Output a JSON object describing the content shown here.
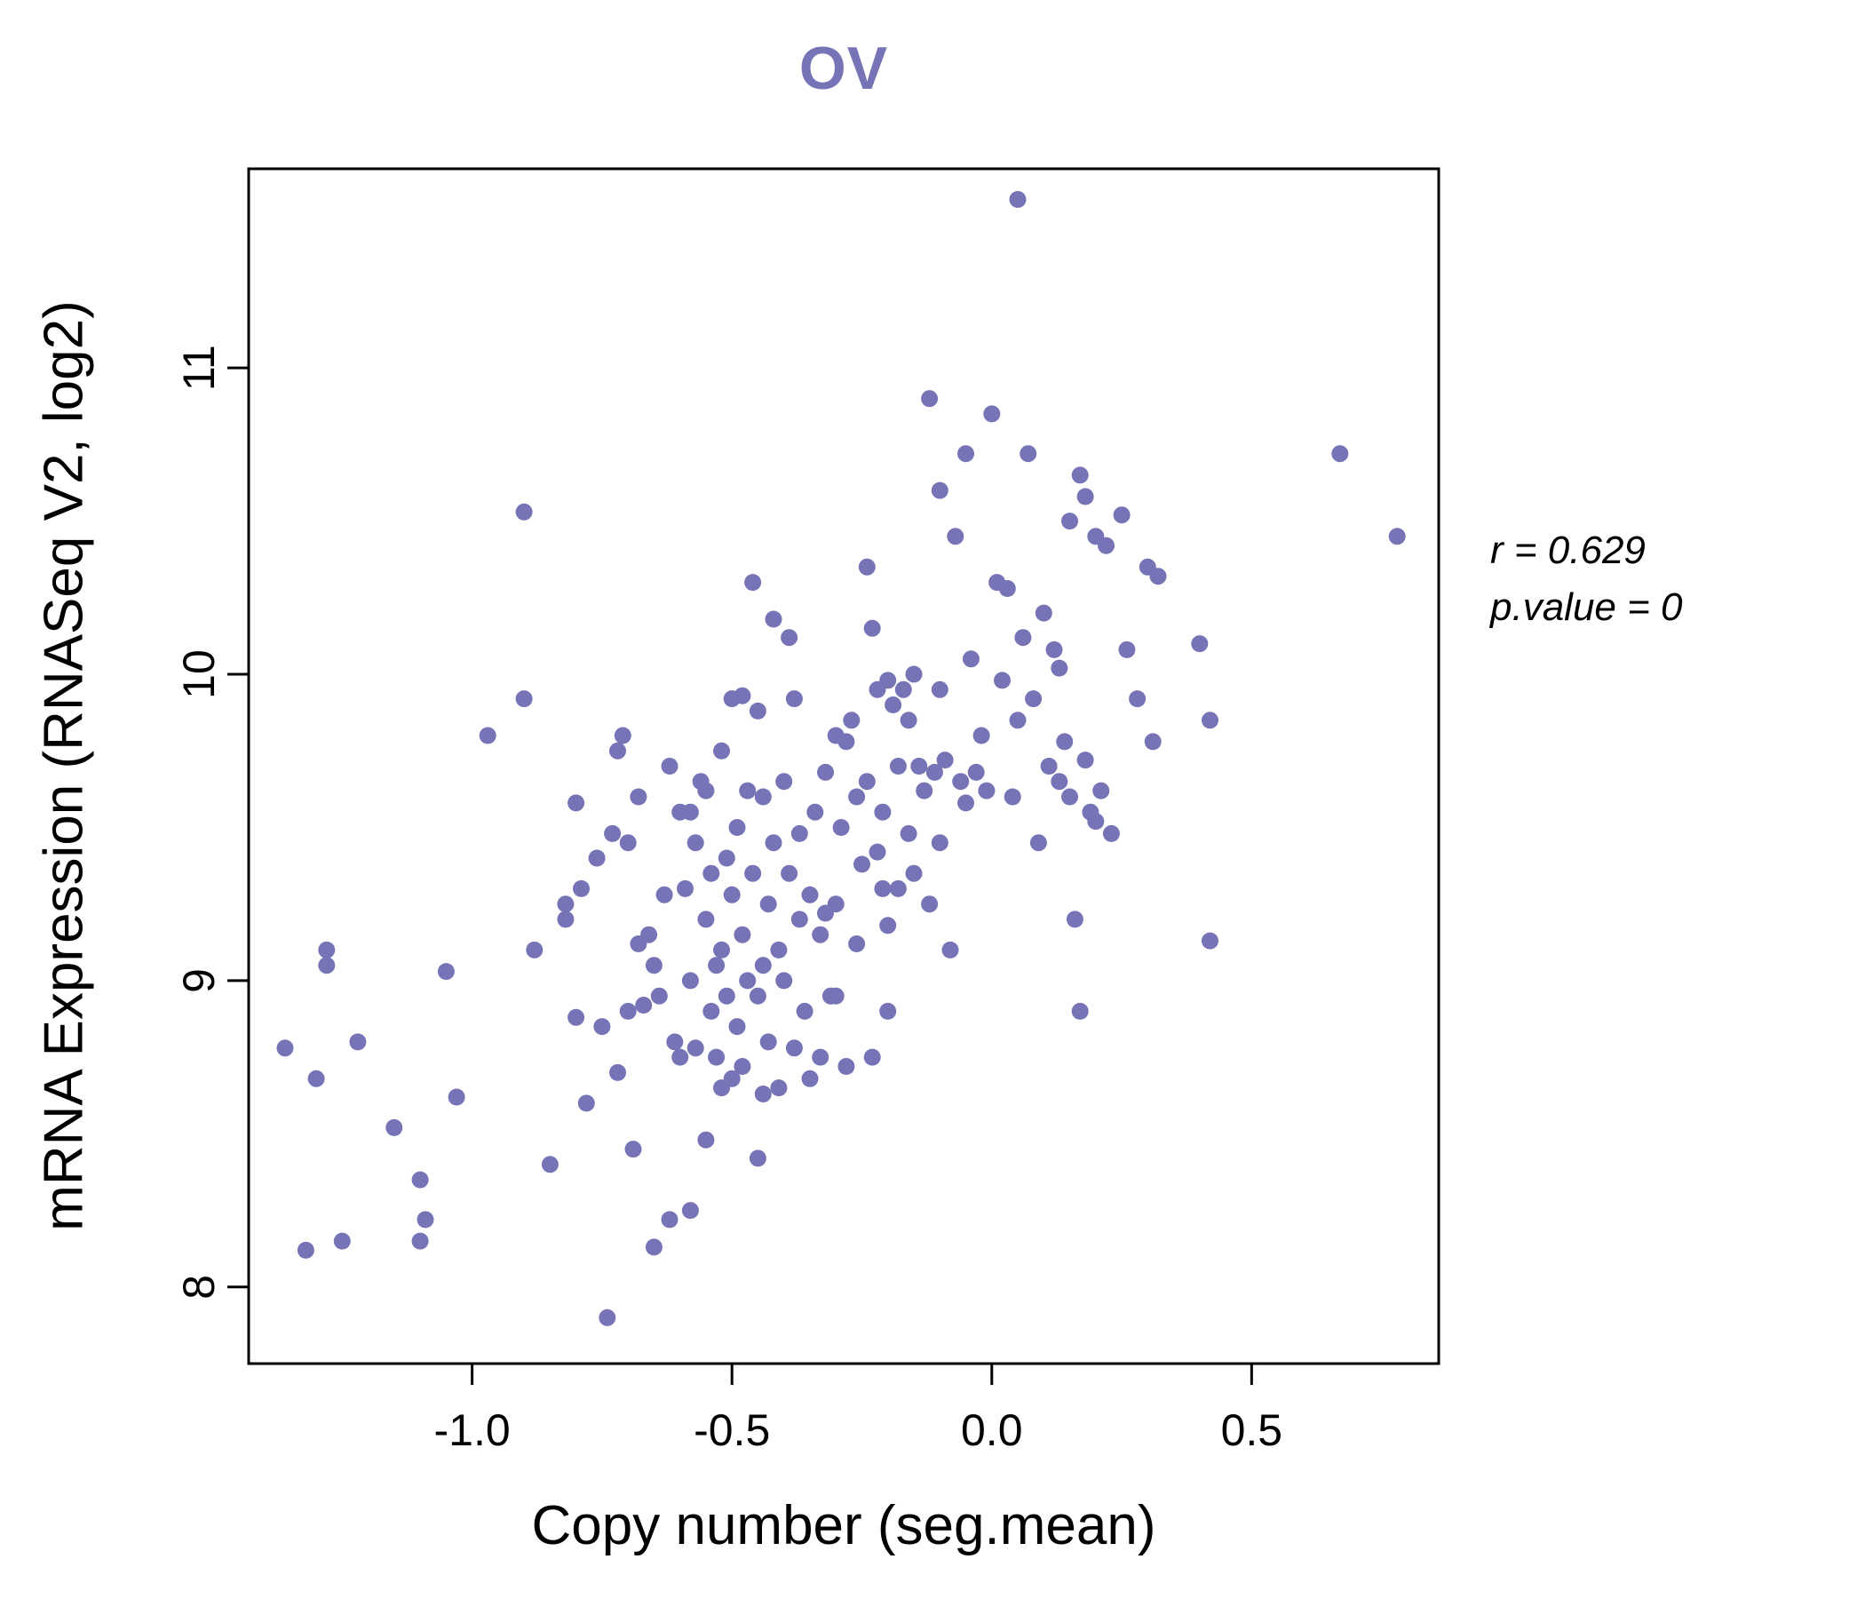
{
  "annotation": {
    "r_text": "r = 0.629",
    "p_text": "p.value = 0"
  },
  "chart_data": {
    "type": "scatter",
    "title": "OV",
    "xlabel": "Copy number (seg.mean)",
    "ylabel": "mRNA Expression (RNASeq V2, log2)",
    "xlim": [
      -1.43,
      0.86
    ],
    "ylim": [
      7.75,
      11.65
    ],
    "x_ticks": {
      "values": [
        -1.0,
        -0.5,
        0.0,
        0.5
      ],
      "labels": [
        "-1.0",
        "-0.5",
        "0.0",
        "0.5"
      ]
    },
    "y_ticks": {
      "values": [
        8,
        9,
        10,
        11
      ],
      "labels": [
        "8",
        "9",
        "10",
        "11"
      ]
    },
    "grid": false,
    "legend": "none",
    "point_color": "#7673B6",
    "title_color": "#7673B6",
    "correlation_r": 0.629,
    "p_value": 0,
    "points": [
      [
        -1.36,
        8.78
      ],
      [
        -1.32,
        8.12
      ],
      [
        -1.3,
        8.68
      ],
      [
        -1.28,
        9.05
      ],
      [
        -1.28,
        9.1
      ],
      [
        -1.25,
        8.15
      ],
      [
        -1.22,
        8.8
      ],
      [
        -1.15,
        8.52
      ],
      [
        -1.1,
        8.15
      ],
      [
        -1.09,
        8.22
      ],
      [
        -1.1,
        8.35
      ],
      [
        -1.05,
        9.03
      ],
      [
        -1.03,
        8.62
      ],
      [
        -0.97,
        9.8
      ],
      [
        -0.9,
        10.53
      ],
      [
        -0.9,
        9.92
      ],
      [
        -0.88,
        9.1
      ],
      [
        -0.85,
        8.4
      ],
      [
        -0.82,
        9.25
      ],
      [
        -0.82,
        9.2
      ],
      [
        -0.8,
        9.58
      ],
      [
        -0.8,
        8.88
      ],
      [
        -0.79,
        9.3
      ],
      [
        -0.78,
        8.6
      ],
      [
        -0.76,
        9.4
      ],
      [
        -0.75,
        8.85
      ],
      [
        -0.74,
        7.9
      ],
      [
        -0.73,
        9.48
      ],
      [
        -0.72,
        8.7
      ],
      [
        -0.72,
        9.75
      ],
      [
        -0.71,
        9.8
      ],
      [
        -0.7,
        9.45
      ],
      [
        -0.7,
        8.9
      ],
      [
        -0.69,
        8.45
      ],
      [
        -0.68,
        9.12
      ],
      [
        -0.68,
        9.6
      ],
      [
        -0.67,
        8.92
      ],
      [
        -0.66,
        9.15
      ],
      [
        -0.65,
        8.13
      ],
      [
        -0.65,
        9.05
      ],
      [
        -0.64,
        8.95
      ],
      [
        -0.63,
        9.28
      ],
      [
        -0.62,
        8.22
      ],
      [
        -0.62,
        9.7
      ],
      [
        -0.61,
        8.8
      ],
      [
        -0.6,
        9.55
      ],
      [
        -0.6,
        8.75
      ],
      [
        -0.59,
        9.3
      ],
      [
        -0.58,
        9.55
      ],
      [
        -0.58,
        8.25
      ],
      [
        -0.58,
        9.0
      ],
      [
        -0.57,
        9.45
      ],
      [
        -0.57,
        8.78
      ],
      [
        -0.56,
        9.65
      ],
      [
        -0.55,
        9.2
      ],
      [
        -0.55,
        8.48
      ],
      [
        -0.55,
        9.62
      ],
      [
        -0.54,
        9.35
      ],
      [
        -0.54,
        8.9
      ],
      [
        -0.53,
        9.05
      ],
      [
        -0.53,
        8.75
      ],
      [
        -0.52,
        9.1
      ],
      [
        -0.52,
        8.65
      ],
      [
        -0.52,
        9.75
      ],
      [
        -0.51,
        9.4
      ],
      [
        -0.51,
        8.95
      ],
      [
        -0.5,
        9.92
      ],
      [
        -0.5,
        9.28
      ],
      [
        -0.5,
        8.68
      ],
      [
        -0.49,
        9.5
      ],
      [
        -0.49,
        8.85
      ],
      [
        -0.48,
        9.15
      ],
      [
        -0.48,
        8.72
      ],
      [
        -0.48,
        9.93
      ],
      [
        -0.47,
        9.62
      ],
      [
        -0.47,
        9.0
      ],
      [
        -0.46,
        10.3
      ],
      [
        -0.46,
        9.35
      ],
      [
        -0.45,
        9.88
      ],
      [
        -0.45,
        8.95
      ],
      [
        -0.45,
        8.42
      ],
      [
        -0.44,
        9.6
      ],
      [
        -0.44,
        9.05
      ],
      [
        -0.44,
        8.63
      ],
      [
        -0.43,
        9.25
      ],
      [
        -0.43,
        8.8
      ],
      [
        -0.42,
        10.18
      ],
      [
        -0.42,
        9.45
      ],
      [
        -0.41,
        9.1
      ],
      [
        -0.41,
        8.65
      ],
      [
        -0.4,
        9.65
      ],
      [
        -0.4,
        9.0
      ],
      [
        -0.39,
        10.12
      ],
      [
        -0.39,
        9.35
      ],
      [
        -0.38,
        8.78
      ],
      [
        -0.38,
        9.92
      ],
      [
        -0.37,
        9.2
      ],
      [
        -0.37,
        9.48
      ],
      [
        -0.36,
        8.9
      ],
      [
        -0.35,
        9.28
      ],
      [
        -0.35,
        8.68
      ],
      [
        -0.34,
        9.55
      ],
      [
        -0.33,
        9.15
      ],
      [
        -0.33,
        8.75
      ],
      [
        -0.32,
        9.68
      ],
      [
        -0.32,
        9.22
      ],
      [
        -0.31,
        8.95
      ],
      [
        -0.3,
        9.8
      ],
      [
        -0.3,
        9.25
      ],
      [
        -0.3,
        8.95
      ],
      [
        -0.29,
        9.5
      ],
      [
        -0.28,
        9.78
      ],
      [
        -0.28,
        8.72
      ],
      [
        -0.27,
        9.85
      ],
      [
        -0.26,
        9.6
      ],
      [
        -0.26,
        9.12
      ],
      [
        -0.25,
        9.38
      ],
      [
        -0.24,
        10.35
      ],
      [
        -0.24,
        9.65
      ],
      [
        -0.23,
        10.15
      ],
      [
        -0.23,
        8.75
      ],
      [
        -0.22,
        9.42
      ],
      [
        -0.22,
        9.95
      ],
      [
        -0.21,
        9.55
      ],
      [
        -0.21,
        9.3
      ],
      [
        -0.2,
        9.98
      ],
      [
        -0.2,
        9.18
      ],
      [
        -0.2,
        8.9
      ],
      [
        -0.19,
        9.9
      ],
      [
        -0.18,
        9.7
      ],
      [
        -0.18,
        9.3
      ],
      [
        -0.17,
        9.95
      ],
      [
        -0.16,
        9.48
      ],
      [
        -0.16,
        9.85
      ],
      [
        -0.15,
        10.0
      ],
      [
        -0.15,
        9.35
      ],
      [
        -0.14,
        9.7
      ],
      [
        -0.13,
        9.62
      ],
      [
        -0.12,
        10.9
      ],
      [
        -0.12,
        9.25
      ],
      [
        -0.11,
        9.68
      ],
      [
        -0.1,
        10.6
      ],
      [
        -0.1,
        9.45
      ],
      [
        -0.1,
        9.95
      ],
      [
        -0.09,
        9.72
      ],
      [
        -0.08,
        9.1
      ],
      [
        -0.07,
        10.45
      ],
      [
        -0.06,
        9.65
      ],
      [
        -0.05,
        10.72
      ],
      [
        -0.05,
        9.58
      ],
      [
        -0.04,
        10.05
      ],
      [
        -0.03,
        9.68
      ],
      [
        -0.02,
        9.8
      ],
      [
        -0.01,
        9.62
      ],
      [
        0.0,
        10.85
      ],
      [
        0.01,
        10.3
      ],
      [
        0.02,
        9.98
      ],
      [
        0.03,
        10.28
      ],
      [
        0.04,
        9.6
      ],
      [
        0.05,
        11.55
      ],
      [
        0.05,
        9.85
      ],
      [
        0.06,
        10.12
      ],
      [
        0.07,
        10.72
      ],
      [
        0.08,
        9.92
      ],
      [
        0.09,
        9.45
      ],
      [
        0.1,
        10.2
      ],
      [
        0.11,
        9.7
      ],
      [
        0.12,
        10.08
      ],
      [
        0.13,
        9.65
      ],
      [
        0.13,
        10.02
      ],
      [
        0.14,
        9.78
      ],
      [
        0.15,
        10.5
      ],
      [
        0.15,
        9.6
      ],
      [
        0.16,
        9.2
      ],
      [
        0.17,
        10.65
      ],
      [
        0.17,
        8.9
      ],
      [
        0.18,
        10.58
      ],
      [
        0.18,
        9.72
      ],
      [
        0.19,
        9.55
      ],
      [
        0.2,
        10.45
      ],
      [
        0.2,
        9.52
      ],
      [
        0.21,
        9.62
      ],
      [
        0.22,
        10.42
      ],
      [
        0.23,
        9.48
      ],
      [
        0.25,
        10.52
      ],
      [
        0.26,
        10.08
      ],
      [
        0.28,
        9.92
      ],
      [
        0.3,
        10.35
      ],
      [
        0.31,
        9.78
      ],
      [
        0.32,
        10.32
      ],
      [
        0.4,
        10.1
      ],
      [
        0.42,
        9.85
      ],
      [
        0.42,
        9.13
      ],
      [
        0.67,
        10.72
      ],
      [
        0.78,
        10.45
      ]
    ]
  }
}
